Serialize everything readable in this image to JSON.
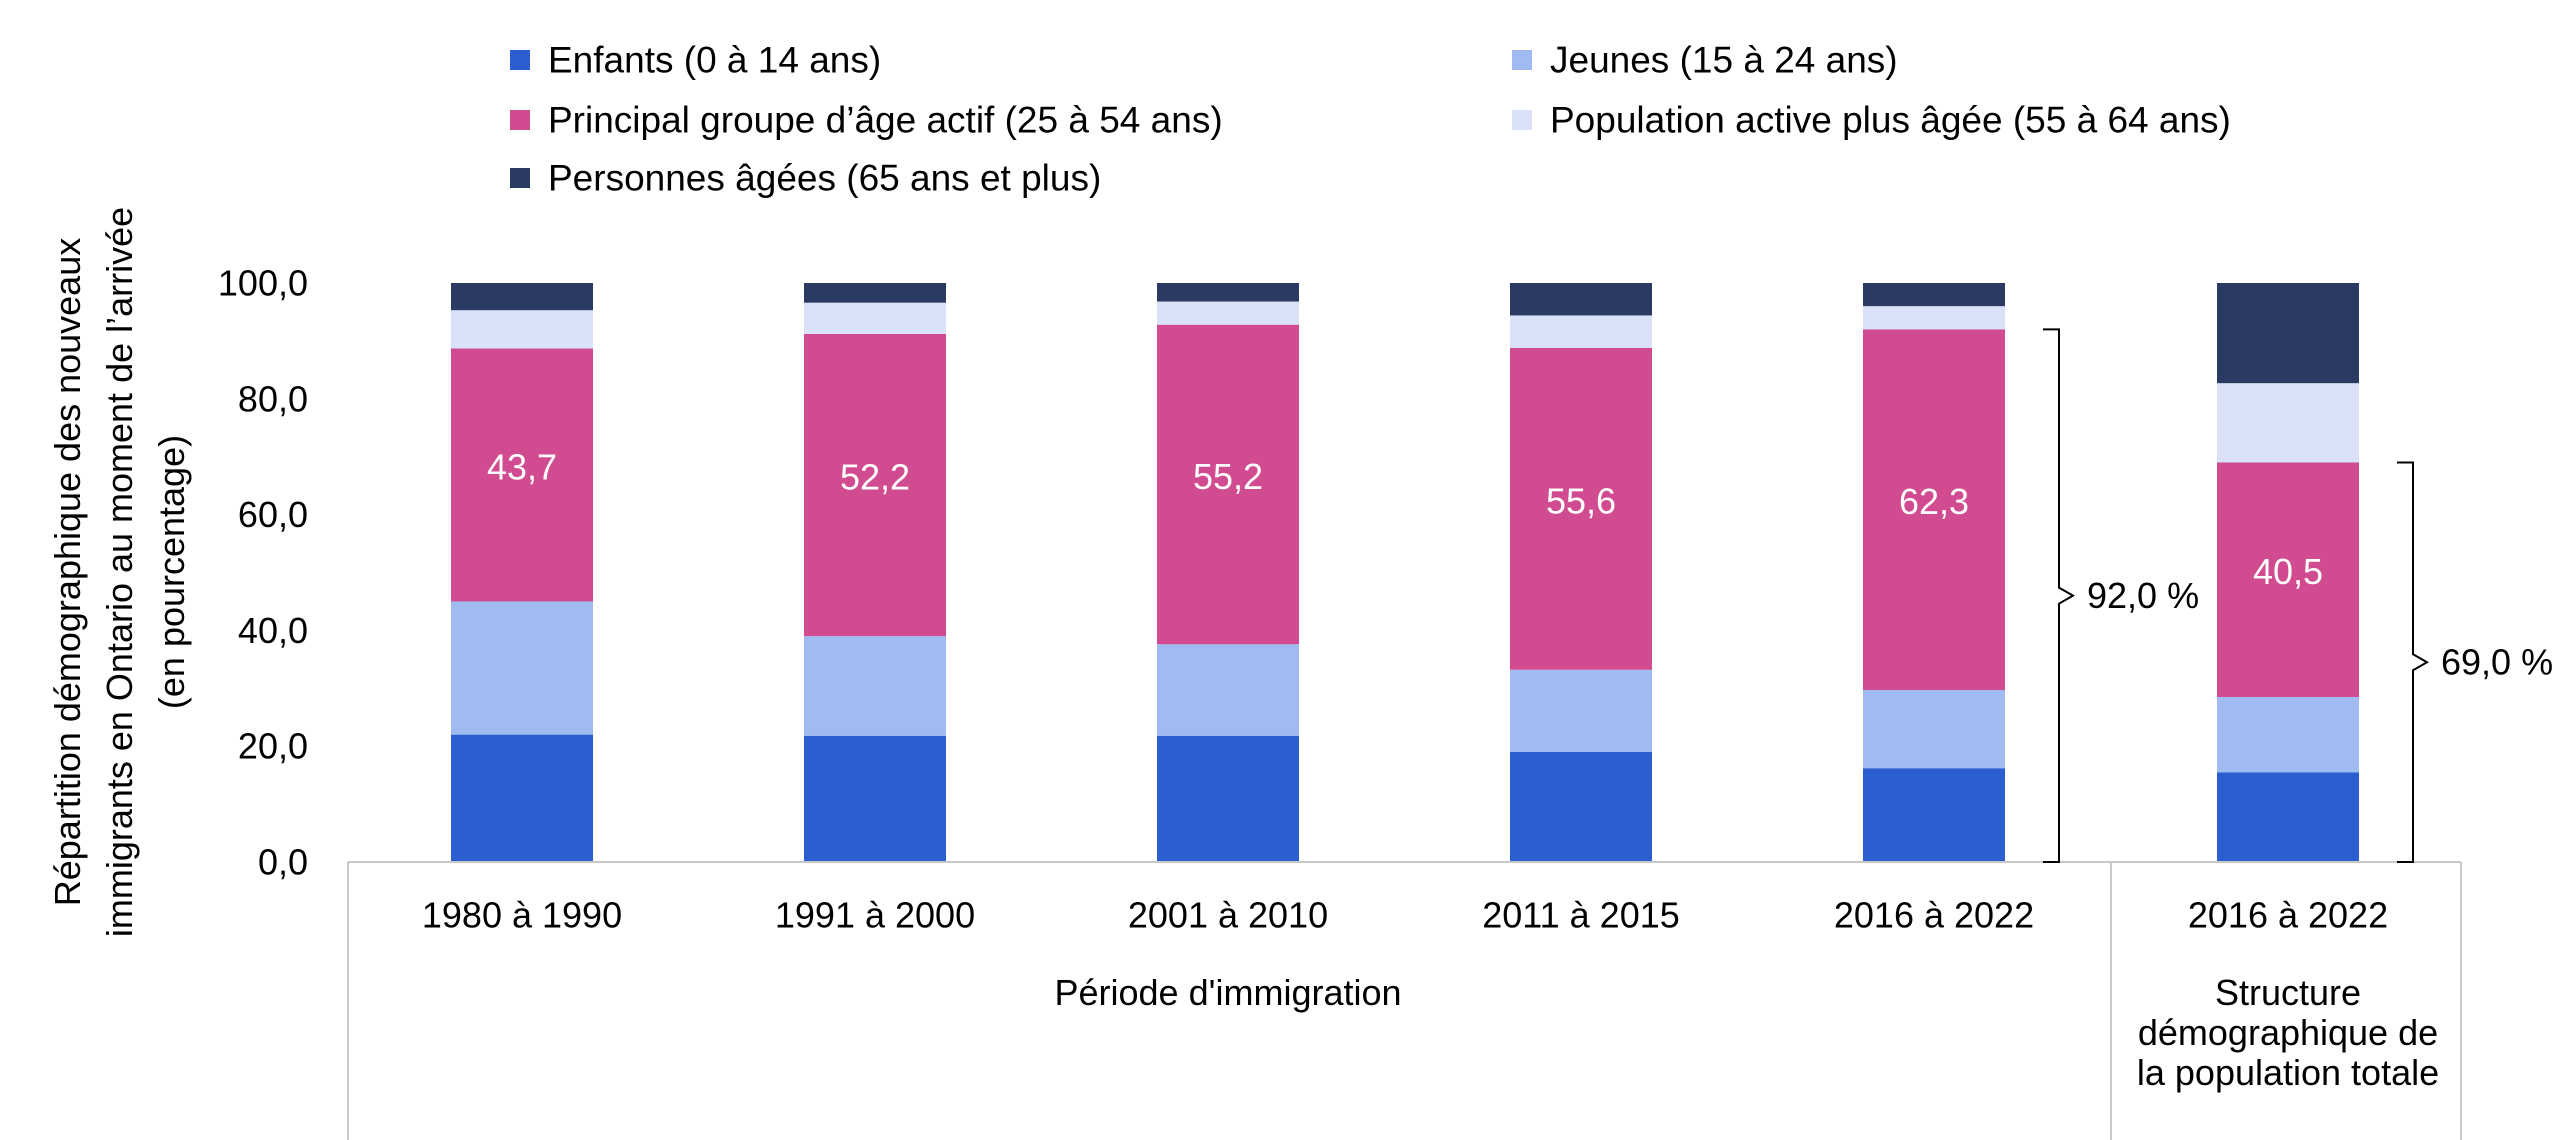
{
  "chart_data": {
    "type": "bar",
    "stacked": true,
    "ylabel": [
      "Répartition démographique des nouveaux",
      "immigrants en Ontario au moment de l’arrivée",
      "(en pourcentage)"
    ],
    "ylim": [
      0,
      100
    ],
    "yticks": [
      "0,0",
      "20,0",
      "40,0",
      "60,0",
      "80,0",
      "100,0"
    ],
    "grid": false,
    "legend_position": "top",
    "categories": [
      "1980 à 1990",
      "1991 à 2000",
      "2001 à 2010",
      "2011 à 2015",
      "2016 à 2022",
      "2016 à 2022"
    ],
    "groups": [
      {
        "label": "Période d'immigration",
        "categories": [
          0,
          1,
          2,
          3,
          4
        ]
      },
      {
        "label": [
          "Structure",
          "démographique de",
          "la population totale"
        ],
        "categories": [
          5
        ]
      }
    ],
    "series": [
      {
        "name": "Enfants (0 à 14 ans)",
        "color": "#2b5fd0",
        "values": [
          22.0,
          21.8,
          21.8,
          19.0,
          16.2,
          15.5
        ]
      },
      {
        "name": "Jeunes (15 à 24 ans)",
        "color": "#9fbbf1",
        "values": [
          23.0,
          17.2,
          15.8,
          14.2,
          13.5,
          13.0
        ]
      },
      {
        "name": "Principal groupe d’âge actif (25 à 54 ans)",
        "color": "#d14b90",
        "values": [
          43.7,
          52.2,
          55.2,
          55.6,
          62.3,
          40.5
        ]
      },
      {
        "name": "Population active plus âgée (55 à 64 ans)",
        "color": "#d9e2f8",
        "values": [
          6.6,
          5.4,
          4.0,
          5.6,
          4.0,
          13.7
        ]
      },
      {
        "name": "Personnes âgées (65 ans et plus)",
        "color": "#2a3a62",
        "values": [
          4.7,
          3.4,
          3.2,
          5.6,
          4.0,
          17.3
        ]
      }
    ],
    "data_labels": {
      "series": 2,
      "values": [
        "43,7",
        "52,2",
        "55,2",
        "55,6",
        "62,3",
        "40,5"
      ]
    },
    "annotations": [
      {
        "category": 4,
        "from": 0,
        "to": 92.0,
        "label": "92,0 %"
      },
      {
        "category": 5,
        "from": 0,
        "to": 69.0,
        "label": "69,0 %"
      }
    ]
  }
}
